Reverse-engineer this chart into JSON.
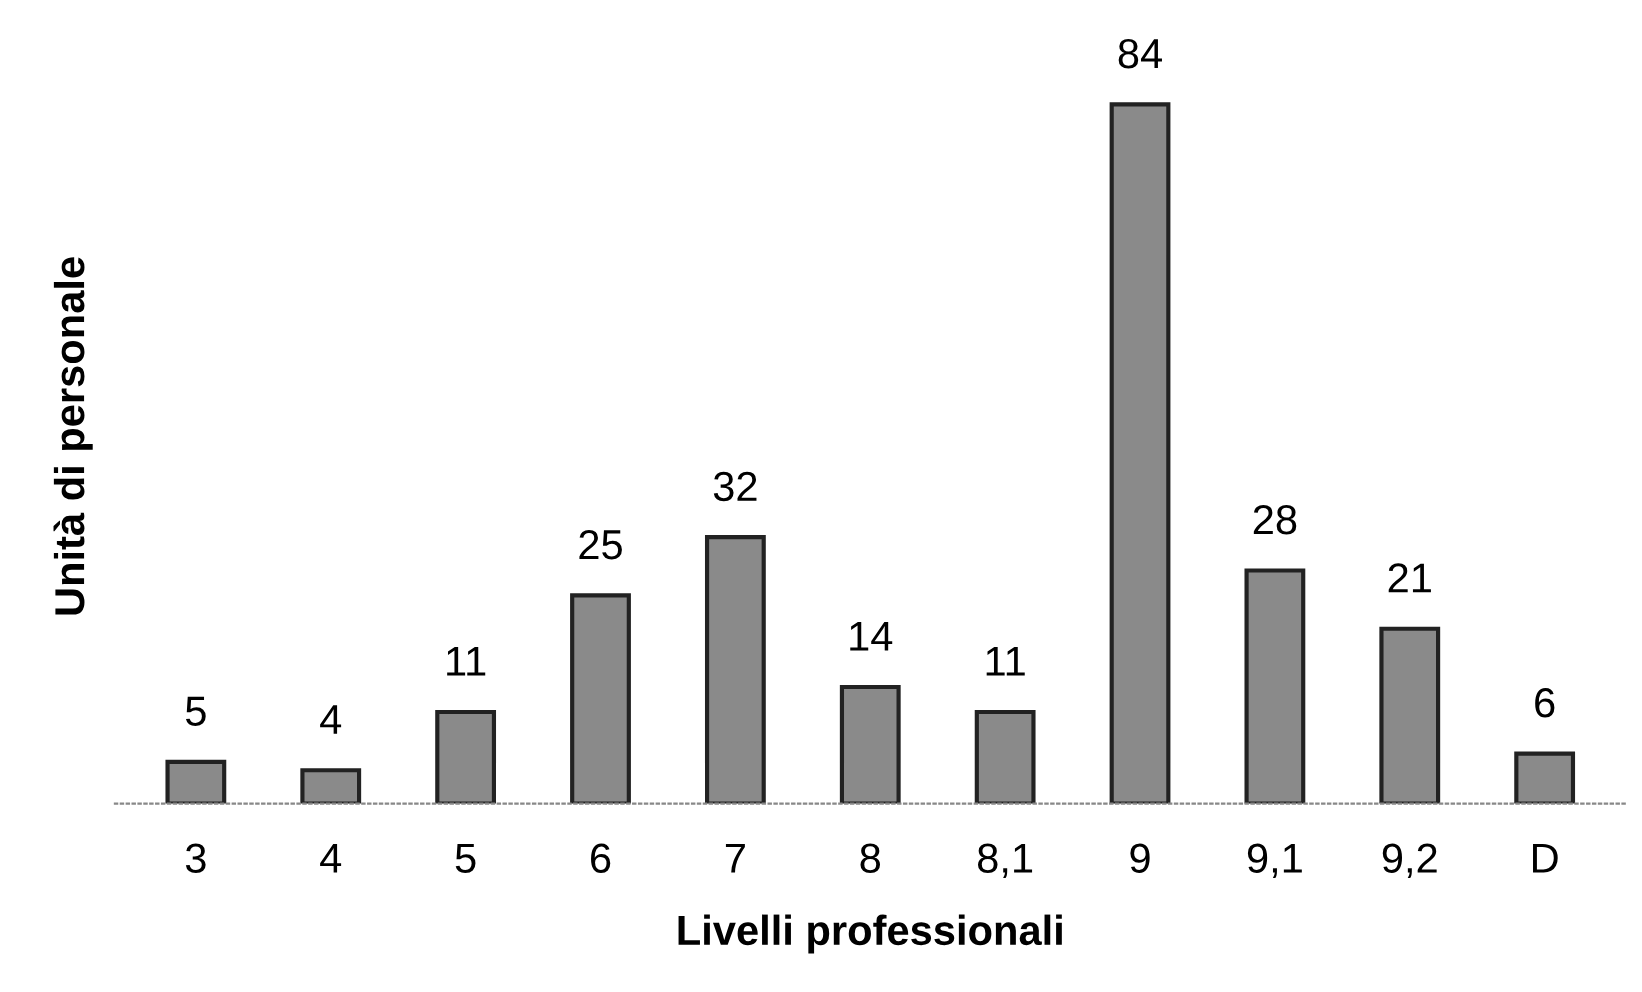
{
  "chart_data": {
    "type": "bar",
    "xlabel": "Livelli professionali",
    "ylabel": "Unità di personale",
    "categories": [
      "3",
      "4",
      "5",
      "6",
      "7",
      "8",
      "8,1",
      "9",
      "9,1",
      "9,2",
      "D"
    ],
    "values": [
      5,
      4,
      11,
      25,
      32,
      14,
      11,
      84,
      28,
      21,
      6
    ],
    "color": "#8a8a8a",
    "data_labels": true,
    "grid": false,
    "legend": false
  }
}
